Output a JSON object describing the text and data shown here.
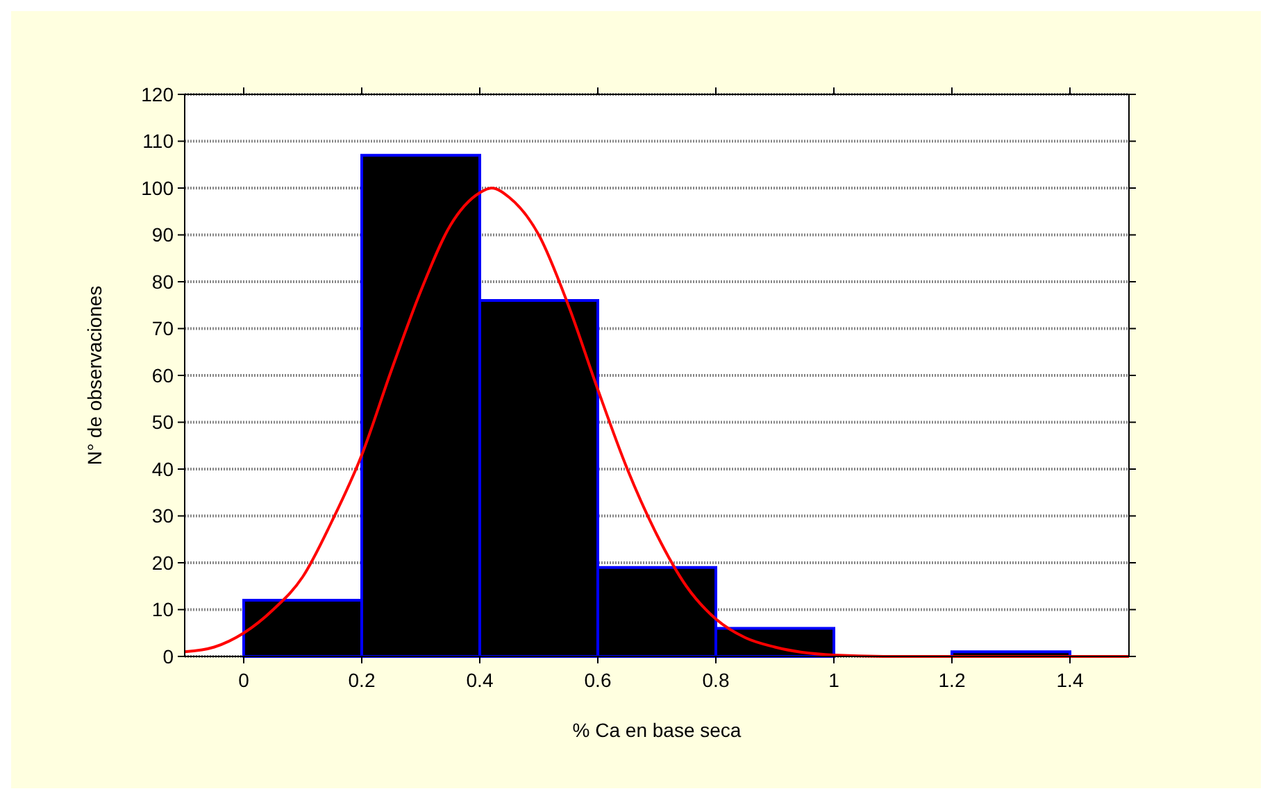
{
  "chart_data": {
    "type": "histogram",
    "xlabel": "% Ca en base seca",
    "ylabel": "N° de observaciones",
    "bins": [
      0,
      0.2,
      0.4,
      0.6,
      0.8,
      1,
      1.2,
      1.4
    ],
    "series": [
      {
        "color": "#000000",
        "values": [
          12,
          107,
          76,
          19,
          6,
          0,
          1
        ]
      },
      {
        "type": "line",
        "color": "#ff0000",
        "x": [
          -0.1,
          -0.05,
          0,
          0.05,
          0.1,
          0.15,
          0.2,
          0.25,
          0.3,
          0.35,
          0.4,
          0.42,
          0.45,
          0.5,
          0.55,
          0.6,
          0.65,
          0.7,
          0.75,
          0.8,
          0.85,
          0.9,
          1,
          1.1,
          1.2,
          1.3,
          1.5
        ],
        "values": [
          1,
          2,
          5,
          10,
          17,
          29,
          43,
          61,
          78,
          92,
          99,
          100,
          98,
          90,
          75,
          57,
          40,
          26,
          15,
          8,
          4,
          2,
          0.3,
          0,
          0,
          0,
          0
        ]
      }
    ],
    "xlim": [
      -0.1,
      1.5
    ],
    "ylim": [
      0,
      120
    ],
    "xticks": [
      0,
      0.2,
      0.4,
      0.6,
      0.8,
      1,
      1.2,
      1.4
    ],
    "yticks": [
      0,
      10,
      20,
      30,
      40,
      50,
      60,
      70,
      80,
      90,
      100,
      110,
      120
    ],
    "grid": "y"
  }
}
